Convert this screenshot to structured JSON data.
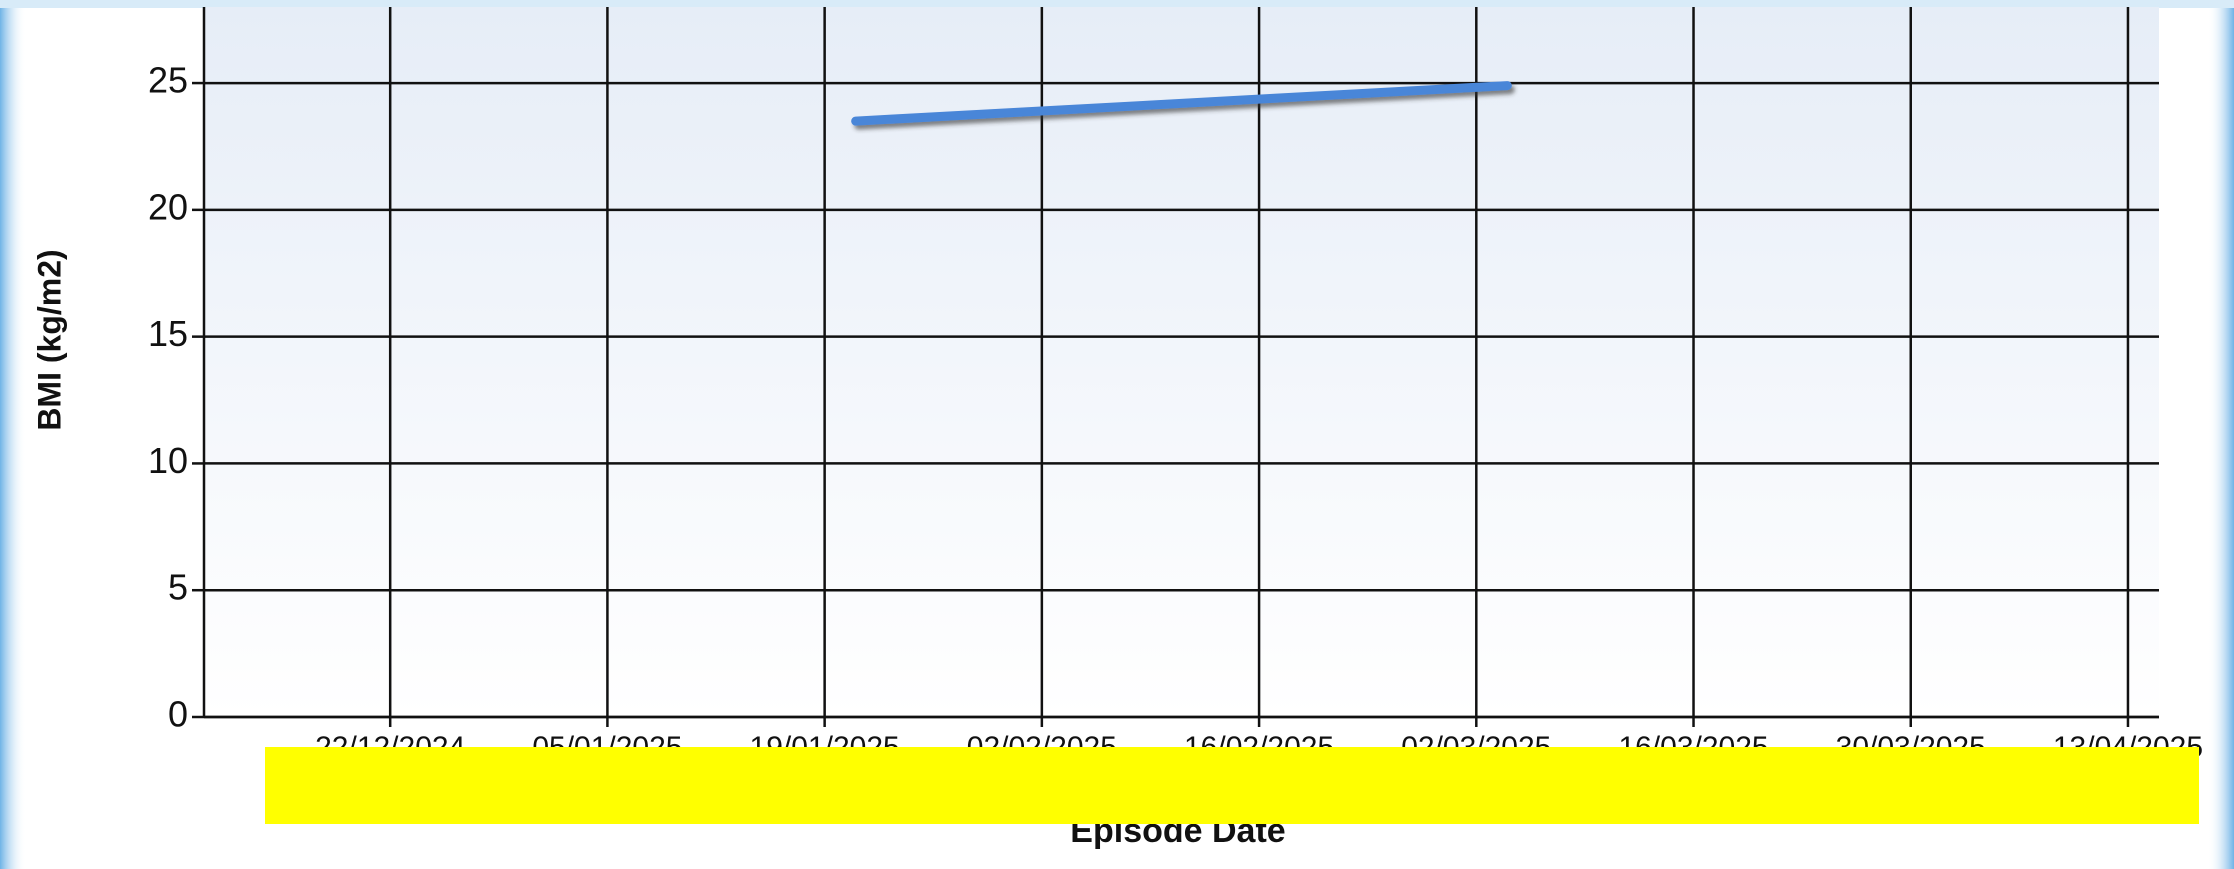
{
  "chart_data": {
    "type": "line",
    "y_label": "BMI (kg/m2)",
    "x_label": "Episode Date",
    "x": [
      "21/01/2025",
      "04/03/2025"
    ],
    "series": [
      {
        "name": "BMI",
        "color": "#4a86d8",
        "values": [
          23.5,
          24.9
        ]
      }
    ],
    "xlim": [
      "10/12/2024",
      "15/04/2025"
    ],
    "xticks": [
      "22/12/2024",
      "05/01/2025",
      "19/01/2025",
      "02/02/2025",
      "16/02/2025",
      "02/03/2025",
      "16/03/2025",
      "30/03/2025",
      "13/04/2025"
    ],
    "ylim": [
      0,
      28
    ],
    "yticks": [
      0,
      5,
      10,
      15,
      20,
      25
    ],
    "grid": true
  }
}
